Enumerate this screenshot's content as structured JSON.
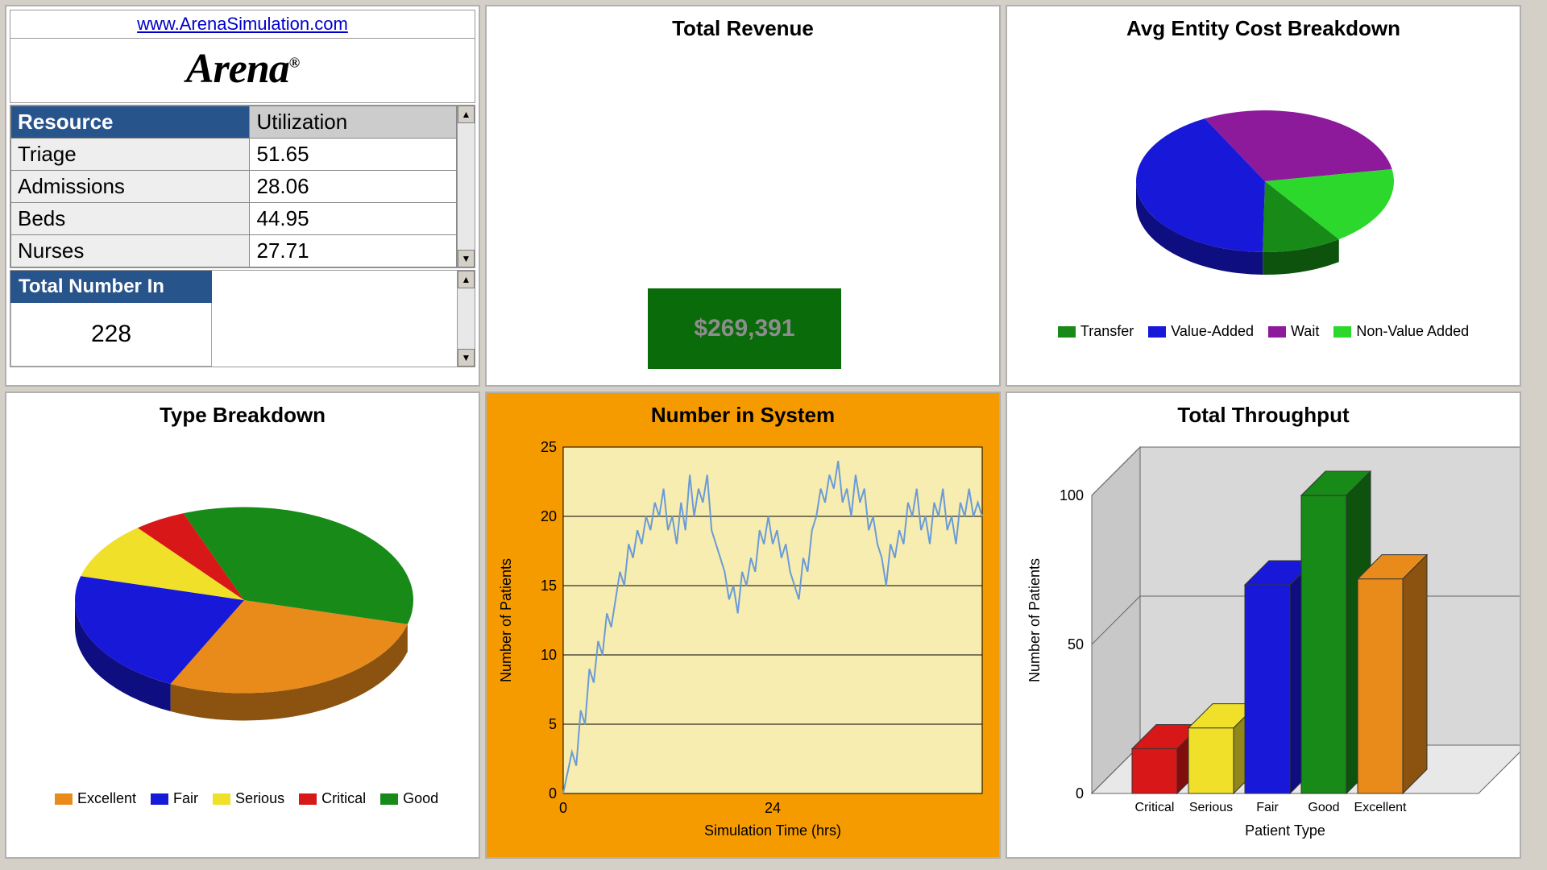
{
  "header": {
    "url": "www.ArenaSimulation.com",
    "logo_text": "Arena",
    "logo_suffix": "®"
  },
  "resource_table": {
    "col1": "Resource",
    "col2": "Utilization",
    "col1_bg": "#28548c",
    "col2_bg": "#cccccc",
    "rows": [
      {
        "name": "Triage",
        "value": "51.65"
      },
      {
        "name": "Admissions",
        "value": "28.06"
      },
      {
        "name": "Beds",
        "value": "44.95"
      },
      {
        "name": "Nurses",
        "value": "27.71"
      }
    ]
  },
  "total_in": {
    "label": "Total Number In",
    "value": "228"
  },
  "revenue": {
    "title": "Total Revenue",
    "value": "$269,391",
    "box_bg": "#0a6b0a",
    "text_color": "#9aa89a"
  },
  "cost_breakdown": {
    "title": "Avg Entity Cost Breakdown",
    "type": "pie",
    "slices": [
      {
        "label": "Transfer",
        "value": 10,
        "color": "#178a17"
      },
      {
        "label": "Value-Added",
        "value": 42,
        "color": "#1818d8"
      },
      {
        "label": "Wait",
        "value": 30,
        "color": "#8d199b"
      },
      {
        "label": "Non-Value Added",
        "value": 18,
        "color": "#2bd82b"
      }
    ],
    "legend_font": 18
  },
  "type_breakdown": {
    "title": "Type Breakdown",
    "type": "pie",
    "slices": [
      {
        "label": "Excellent",
        "value": 28,
        "color": "#e88b1a"
      },
      {
        "label": "Fair",
        "value": 22,
        "color": "#1818d8"
      },
      {
        "label": "Serious",
        "value": 10,
        "color": "#f0e02a"
      },
      {
        "label": "Critical",
        "value": 5,
        "color": "#d81818"
      },
      {
        "label": "Good",
        "value": 35,
        "color": "#178a17"
      }
    ]
  },
  "number_in_system": {
    "title": "Number in System",
    "background": "#f7edb0",
    "panel_bg": "#f59b00",
    "line_color": "#6a9bd8",
    "xlabel": "Simulation Time (hrs)",
    "ylabel": "Number of Patients",
    "xlim": [
      0,
      48
    ],
    "ylim": [
      0,
      25
    ],
    "yticks": [
      0,
      5,
      10,
      15,
      20,
      25
    ],
    "xticks": [
      0,
      24
    ],
    "grid_color": "#000000",
    "data": [
      [
        0,
        0
      ],
      [
        1,
        3
      ],
      [
        1.5,
        2
      ],
      [
        2,
        6
      ],
      [
        2.5,
        5
      ],
      [
        3,
        9
      ],
      [
        3.5,
        8
      ],
      [
        4,
        11
      ],
      [
        4.5,
        10
      ],
      [
        5,
        13
      ],
      [
        5.5,
        12
      ],
      [
        6,
        14
      ],
      [
        6.5,
        16
      ],
      [
        7,
        15
      ],
      [
        7.5,
        18
      ],
      [
        8,
        17
      ],
      [
        8.5,
        19
      ],
      [
        9,
        18
      ],
      [
        9.5,
        20
      ],
      [
        10,
        19
      ],
      [
        10.5,
        21
      ],
      [
        11,
        20
      ],
      [
        11.5,
        22
      ],
      [
        12,
        19
      ],
      [
        12.5,
        20
      ],
      [
        13,
        18
      ],
      [
        13.5,
        21
      ],
      [
        14,
        19
      ],
      [
        14.5,
        23
      ],
      [
        15,
        20
      ],
      [
        15.5,
        22
      ],
      [
        16,
        21
      ],
      [
        16.5,
        23
      ],
      [
        17,
        19
      ],
      [
        17.5,
        18
      ],
      [
        18,
        17
      ],
      [
        18.5,
        16
      ],
      [
        19,
        14
      ],
      [
        19.5,
        15
      ],
      [
        20,
        13
      ],
      [
        20.5,
        16
      ],
      [
        21,
        15
      ],
      [
        21.5,
        17
      ],
      [
        22,
        16
      ],
      [
        22.5,
        19
      ],
      [
        23,
        18
      ],
      [
        23.5,
        20
      ],
      [
        24,
        18
      ],
      [
        24.5,
        19
      ],
      [
        25,
        17
      ],
      [
        25.5,
        18
      ],
      [
        26,
        16
      ],
      [
        26.5,
        15
      ],
      [
        27,
        14
      ],
      [
        27.5,
        17
      ],
      [
        28,
        16
      ],
      [
        28.5,
        19
      ],
      [
        29,
        20
      ],
      [
        29.5,
        22
      ],
      [
        30,
        21
      ],
      [
        30.5,
        23
      ],
      [
        31,
        22
      ],
      [
        31.5,
        24
      ],
      [
        32,
        21
      ],
      [
        32.5,
        22
      ],
      [
        33,
        20
      ],
      [
        33.5,
        23
      ],
      [
        34,
        21
      ],
      [
        34.5,
        22
      ],
      [
        35,
        19
      ],
      [
        35.5,
        20
      ],
      [
        36,
        18
      ],
      [
        36.5,
        17
      ],
      [
        37,
        15
      ],
      [
        37.5,
        18
      ],
      [
        38,
        17
      ],
      [
        38.5,
        19
      ],
      [
        39,
        18
      ],
      [
        39.5,
        21
      ],
      [
        40,
        20
      ],
      [
        40.5,
        22
      ],
      [
        41,
        19
      ],
      [
        41.5,
        20
      ],
      [
        42,
        18
      ],
      [
        42.5,
        21
      ],
      [
        43,
        20
      ],
      [
        43.5,
        22
      ],
      [
        44,
        19
      ],
      [
        44.5,
        20
      ],
      [
        45,
        18
      ],
      [
        45.5,
        21
      ],
      [
        46,
        20
      ],
      [
        46.5,
        22
      ],
      [
        47,
        20
      ],
      [
        47.5,
        21
      ],
      [
        48,
        20
      ]
    ]
  },
  "throughput": {
    "title": "Total Throughput",
    "xlabel": "Patient Type",
    "ylabel": "Number of Patients",
    "ylim": [
      0,
      100
    ],
    "yticks": [
      0,
      50,
      100
    ],
    "background": "#d4d4d4",
    "bars": [
      {
        "label": "Critical",
        "value": 15,
        "color": "#d81818"
      },
      {
        "label": "Serious",
        "value": 22,
        "color": "#f0e02a"
      },
      {
        "label": "Fair",
        "value": 70,
        "color": "#1818d8"
      },
      {
        "label": "Good",
        "value": 100,
        "color": "#178a17"
      },
      {
        "label": "Excellent",
        "value": 72,
        "color": "#e88b1a"
      }
    ]
  }
}
